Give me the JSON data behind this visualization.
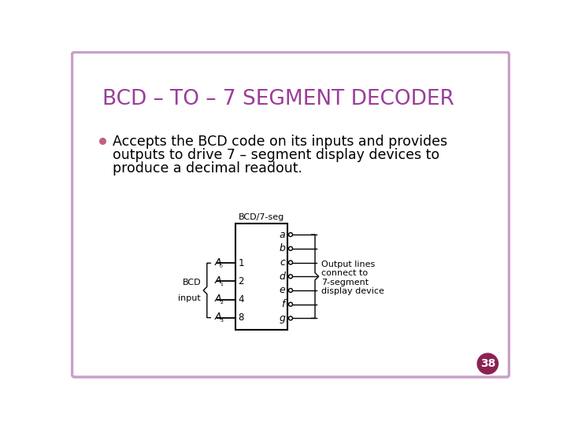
{
  "title": "BCD – TO – 7 SEGMENT DECODER",
  "title_color": "#9B3D9B",
  "background_color": "#FFFFFF",
  "border_color": "#C9A0C9",
  "bullet_text_line1": "Accepts the BCD code on its inputs and provides",
  "bullet_text_line2": "outputs to drive 7 – segment display devices to",
  "bullet_text_line3": "produce a decimal readout.",
  "bullet_color": "#C06080",
  "body_text_color": "#000000",
  "page_number": "38",
  "page_num_bg": "#8B2252",
  "page_num_color": "#FFFFFF",
  "box_label": "BCD/7-seg",
  "input_labels": [
    "A₀",
    "A₁",
    "A₂",
    "A₃"
  ],
  "input_pins": [
    "1",
    "2",
    "4",
    "8"
  ],
  "output_labels": [
    "a",
    "b",
    "c",
    "d",
    "e",
    "f",
    "g"
  ],
  "left_label_line1": "BCD",
  "left_label_line2": "input",
  "right_label_line1": "Output lines",
  "right_label_line2": "connect to",
  "right_label_line3": "7-segment",
  "right_label_line4": "display device"
}
